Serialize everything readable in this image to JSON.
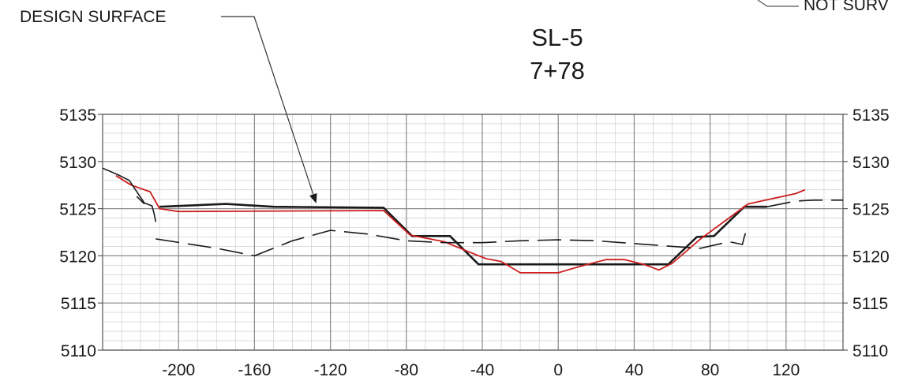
{
  "chart_data": {
    "type": "line",
    "title": "SL-5",
    "subtitle": "7+78",
    "xlabel": "",
    "ylabel": "",
    "xlim": [
      -240,
      150
    ],
    "ylim": [
      5110,
      5135
    ],
    "x_ticks": [
      -200,
      -160,
      -120,
      -80,
      -40,
      0,
      40,
      80,
      120
    ],
    "y_ticks": [
      5110,
      5115,
      5120,
      5125,
      5130,
      5135
    ],
    "grid": true,
    "annotations": [
      {
        "text": "DESIGN SURFACE",
        "target": "Design surface"
      },
      {
        "text": "NOT SURV",
        "target": ""
      }
    ],
    "series": [
      {
        "key": "design",
        "color": "#1a1a1a",
        "style": "solid",
        "x": [
          -210,
          -175,
          -150,
          -92,
          -77,
          -57,
          -42,
          58,
          73,
          82,
          98,
          110
        ],
        "y": [
          5125.2,
          5125.5,
          5125.2,
          5125.1,
          5122.1,
          5122.1,
          5119.1,
          5119.1,
          5122.0,
          5122.1,
          5125.2,
          5125.2
        ]
      },
      {
        "key": "existing",
        "color": "#cc1f1f",
        "style": "solid",
        "x": [
          -233,
          -225,
          -215,
          -210,
          -200,
          -92,
          -78,
          -60,
          -48,
          -38,
          -30,
          -20,
          0,
          10,
          25,
          35,
          45,
          53,
          60,
          75,
          100,
          125,
          130
        ],
        "y": [
          5128.5,
          5127.5,
          5126.8,
          5125.0,
          5124.7,
          5124.8,
          5122.2,
          5121.5,
          5120.5,
          5119.7,
          5119.4,
          5118.2,
          5118.2,
          5118.8,
          5119.6,
          5119.6,
          5119.1,
          5118.5,
          5119.2,
          5121.8,
          5125.5,
          5126.6,
          5127.0
        ]
      },
      {
        "key": "dashed",
        "color": "#1a1a1a",
        "style": "dashed",
        "x": [
          -212,
          -180,
          -160,
          -140,
          -120,
          -100,
          -80,
          -60,
          -40,
          -20,
          0,
          20,
          40,
          60,
          75,
          90,
          97,
          98,
          100
        ],
        "y": [
          5121.8,
          5120.8,
          5120.0,
          5121.6,
          5122.7,
          5122.3,
          5121.6,
          5121.4,
          5121.4,
          5121.6,
          5121.7,
          5121.6,
          5121.3,
          5121.0,
          5120.8,
          5121.5,
          5121.2,
          5122.0,
          5123.2
        ]
      },
      {
        "key": "left_original",
        "color": "#1a1a1a",
        "style": "solid",
        "x": [
          -240,
          -232,
          -226,
          -224,
          -218,
          -214,
          -213,
          -212
        ],
        "y": [
          5129.3,
          5128.6,
          5128.0,
          5127.4,
          5125.6,
          5125.3,
          5124.6,
          5123.6
        ]
      },
      {
        "key": "left_dash_stub",
        "color": "#1a1a1a",
        "style": "dashed",
        "x": [
          -222,
          -218
        ],
        "y": [
          5126.3,
          5125.5
        ]
      },
      {
        "key": "right_tail",
        "color": "#1a1a1a",
        "style": "dashed",
        "x": [
          110,
          125,
          135,
          150
        ],
        "y": [
          5125.2,
          5125.8,
          5125.9,
          5125.9
        ]
      }
    ]
  }
}
